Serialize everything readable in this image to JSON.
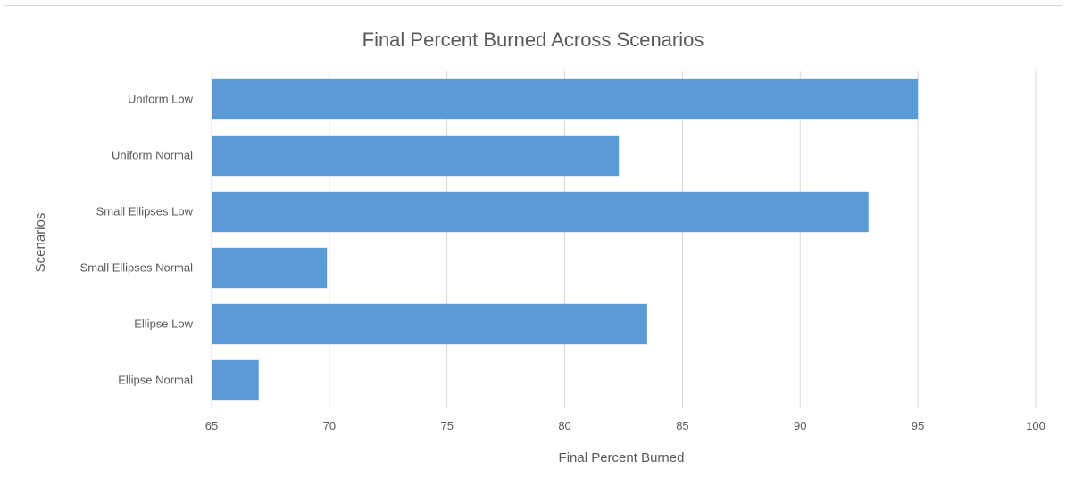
{
  "chart_data": {
    "type": "bar",
    "orientation": "horizontal",
    "title": "Final Percent Burned Across Scenarios",
    "xlabel": "Final Percent Burned",
    "ylabel": "Scenarios",
    "categories": [
      "Uniform Low",
      "Uniform Normal",
      "Small Ellipses Low",
      "Small Ellipses Normal",
      "Ellipse Low",
      "Ellipse Normal"
    ],
    "values": [
      95.0,
      82.3,
      92.9,
      69.9,
      83.5,
      67.0
    ],
    "xlim": [
      65,
      100
    ],
    "xticks": [
      "65",
      "70",
      "75",
      "80",
      "85",
      "90",
      "95",
      "100"
    ],
    "grid": "vertical",
    "legend": "none",
    "bar_color": "#5b9bd5",
    "grid_color": "#d9d9d9"
  }
}
